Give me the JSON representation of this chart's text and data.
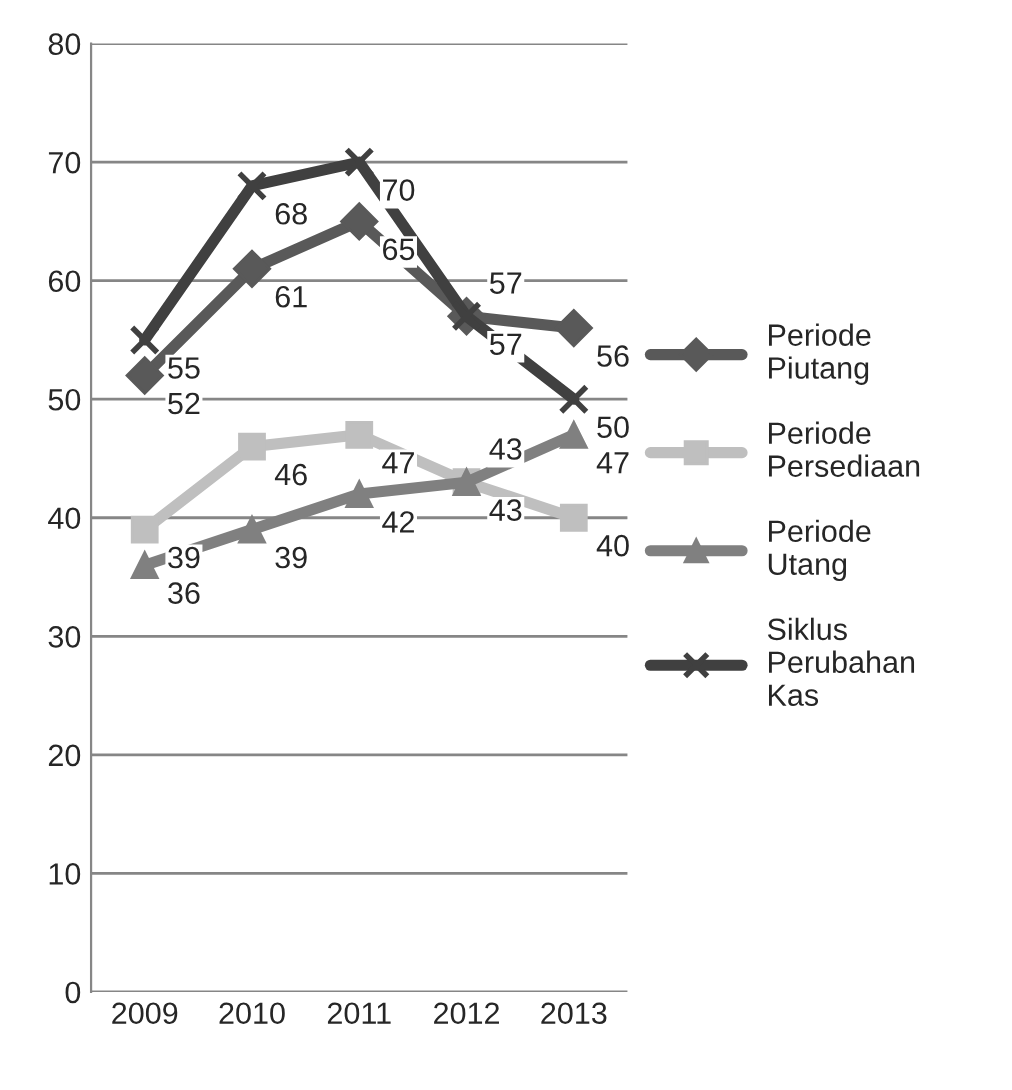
{
  "chart_data": {
    "type": "line",
    "categories": [
      "2009",
      "2010",
      "2011",
      "2012",
      "2013"
    ],
    "series": [
      {
        "name": "Periode Piutang",
        "color": "#595959",
        "marker": "diamond",
        "values": [
          52,
          61,
          65,
          57,
          56
        ]
      },
      {
        "name": "Periode Persediaan",
        "color": "#bfbfbf",
        "marker": "square",
        "values": [
          39,
          46,
          47,
          43,
          40
        ]
      },
      {
        "name": "Periode Utang",
        "color": "#808080",
        "marker": "triangle",
        "values": [
          36,
          39,
          42,
          43,
          47
        ]
      },
      {
        "name": "Siklus Perubahan Kas",
        "color": "#404040",
        "marker": "cross",
        "values": [
          55,
          68,
          70,
          57,
          50
        ]
      }
    ],
    "ylim": [
      0,
      80
    ],
    "yticks": [
      0,
      10,
      20,
      30,
      40,
      50,
      60,
      70,
      80
    ],
    "grid": "y",
    "legend": "right",
    "data_labels": true,
    "line_style": "solid"
  }
}
